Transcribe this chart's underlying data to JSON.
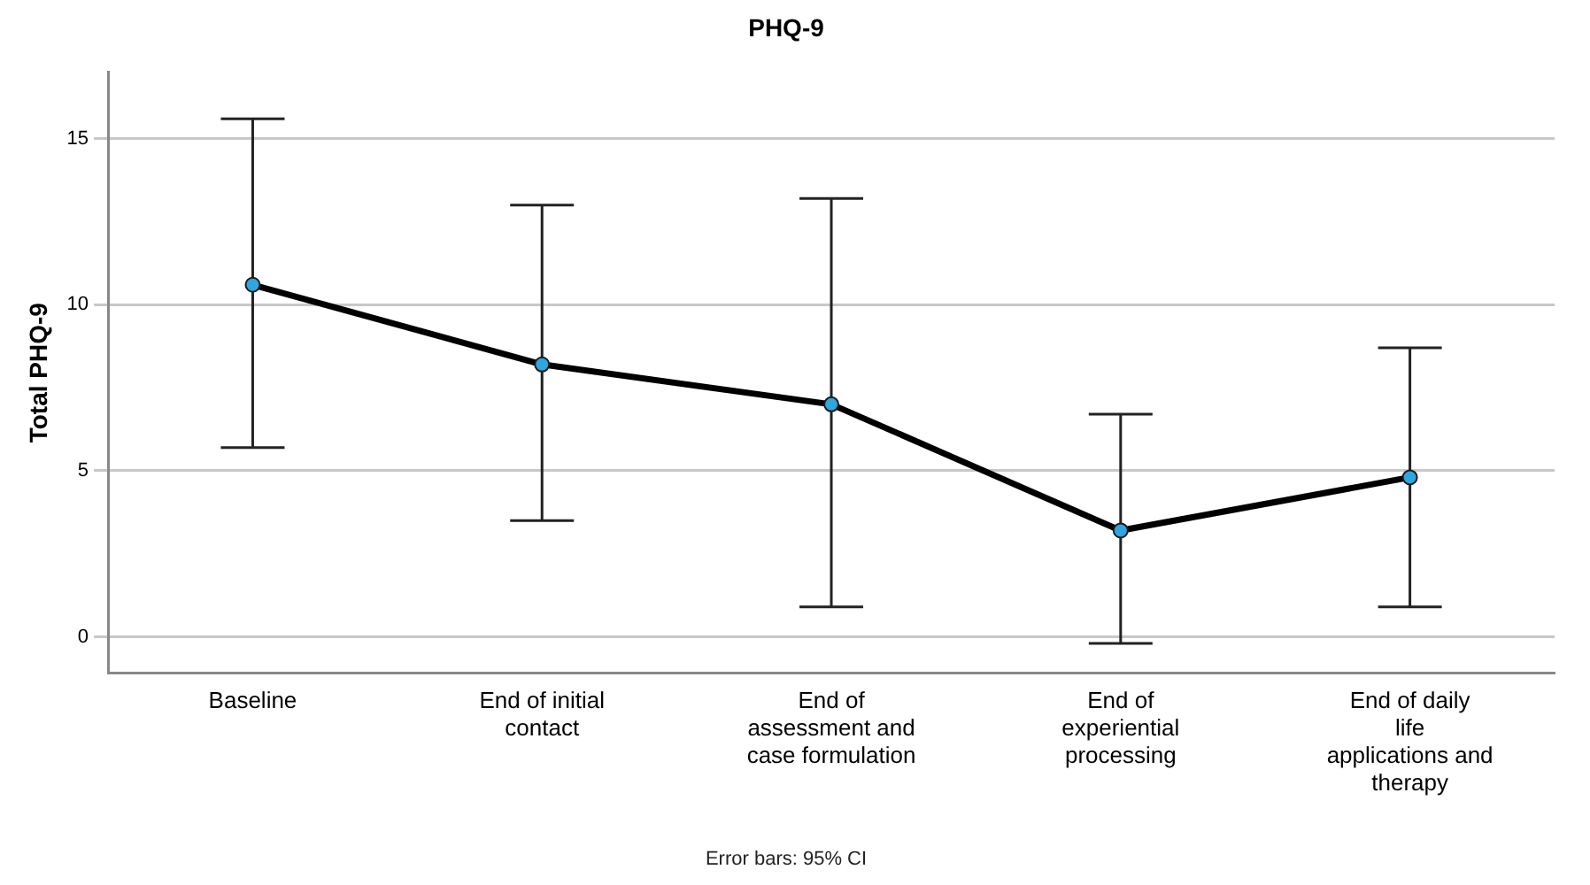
{
  "chart_data": {
    "type": "line",
    "title": "PHQ-9",
    "ylabel": "Total PHQ-9",
    "categories": [
      "Baseline",
      "End of initial contact",
      "End of assessment and case formulation",
      "End of experiential processing",
      "End of daily life applications and therapy"
    ],
    "series": [
      {
        "color": "#000000",
        "values": [
          10.6,
          8.2,
          7.0,
          3.2,
          4.8
        ],
        "errors": [
          [
            5.7,
            15.6
          ],
          [
            3.5,
            13.0
          ],
          [
            0.9,
            13.2
          ],
          [
            -0.2,
            6.7
          ],
          [
            0.9,
            8.7
          ]
        ]
      }
    ],
    "ylim": [
      -1.1,
      17
    ],
    "yticks": [
      0,
      5,
      10,
      15
    ],
    "grid": "y",
    "marker": "circle",
    "line_style": "solid",
    "legend": false,
    "annotations": [
      "Error bars: 95% CI"
    ]
  }
}
